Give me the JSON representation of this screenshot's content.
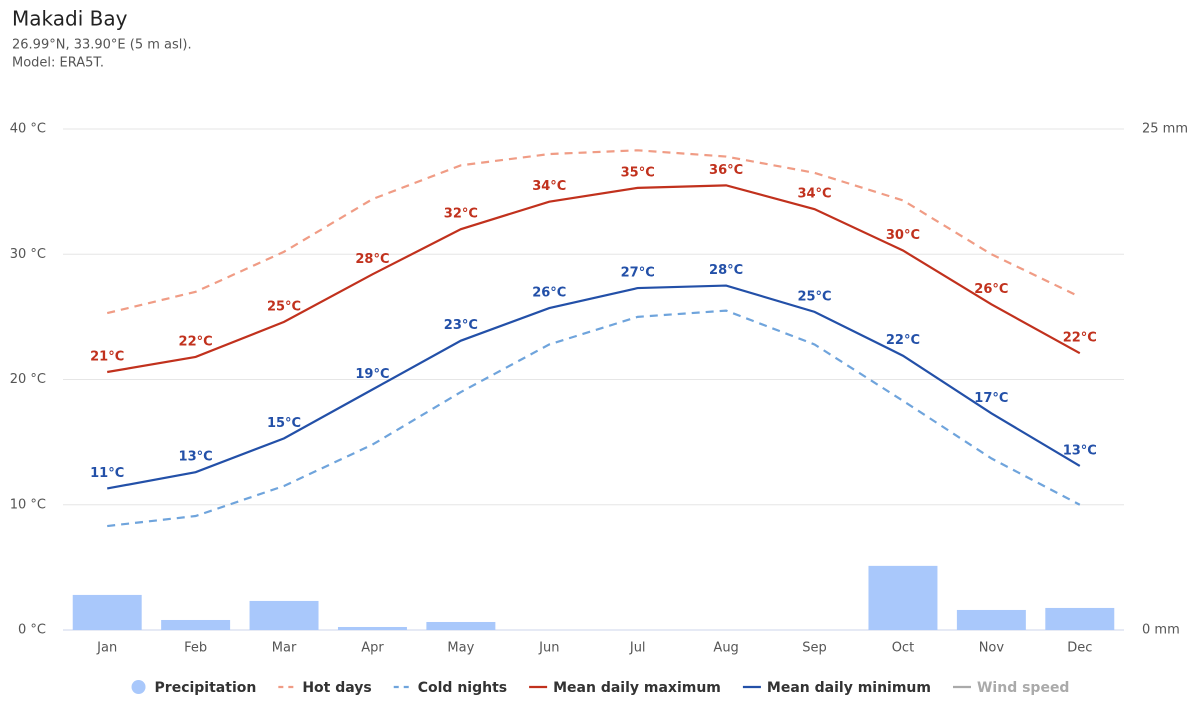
{
  "chart_data": {
    "type": "line",
    "title": "Makadi Bay",
    "subtitle": [
      "26.99°N, 33.90°E (5 m asl).",
      "Model: ERA5T."
    ],
    "categories": [
      "Jan",
      "Feb",
      "Mar",
      "Apr",
      "May",
      "Jun",
      "Jul",
      "Aug",
      "Sep",
      "Oct",
      "Nov",
      "Dec"
    ],
    "ylim": [
      0,
      40
    ],
    "yticks": [
      {
        "value": 0,
        "label": "0 °C"
      },
      {
        "value": 10,
        "label": "10 °C"
      },
      {
        "value": 20,
        "label": "20 °C"
      },
      {
        "value": 30,
        "label": "30 °C"
      },
      {
        "value": 40,
        "label": "40 °C"
      }
    ],
    "y2lim": [
      0,
      25
    ],
    "y2ticks": [
      {
        "value": 0,
        "label": "0 mm"
      },
      {
        "value": 25,
        "label": "25 mm"
      }
    ],
    "grid": true,
    "legend": "bottom",
    "series": [
      {
        "name": "Precipitation",
        "type": "column",
        "axis": "y2",
        "color": "#a9c8fb",
        "values": [
          1.75,
          0.5,
          1.45,
          0.15,
          0.4,
          0,
          0,
          0,
          0,
          3.2,
          1.0,
          1.1
        ]
      },
      {
        "name": "Hot days",
        "type": "line",
        "dash": true,
        "color": "#f09c85",
        "values": [
          25.3,
          27.0,
          30.2,
          34.4,
          37.1,
          38.0,
          38.3,
          37.8,
          36.5,
          34.3,
          30.0,
          26.6
        ]
      },
      {
        "name": "Cold nights",
        "type": "line",
        "dash": true,
        "color": "#6fa4dc",
        "values": [
          8.3,
          9.1,
          11.5,
          14.8,
          19.0,
          22.8,
          25.0,
          25.5,
          22.8,
          18.3,
          13.7,
          10.0
        ]
      },
      {
        "name": "Mean daily maximum",
        "type": "line",
        "color": "#c1311d",
        "values": [
          20.6,
          21.8,
          24.6,
          28.4,
          32.0,
          34.2,
          35.3,
          35.5,
          33.6,
          30.3,
          26.0,
          22.1
        ],
        "value_labels": [
          "21°C",
          "22°C",
          "25°C",
          "28°C",
          "32°C",
          "34°C",
          "35°C",
          "36°C",
          "34°C",
          "30°C",
          "26°C",
          "22°C"
        ]
      },
      {
        "name": "Mean daily minimum",
        "type": "line",
        "color": "#2350a8",
        "values": [
          11.3,
          12.6,
          15.3,
          19.2,
          23.1,
          25.7,
          27.3,
          27.5,
          25.4,
          21.9,
          17.3,
          13.1
        ],
        "value_labels": [
          "11°C",
          "13°C",
          "15°C",
          "19°C",
          "23°C",
          "26°C",
          "27°C",
          "28°C",
          "25°C",
          "22°C",
          "17°C",
          "13°C"
        ]
      },
      {
        "name": "Wind speed",
        "type": "line",
        "visible": false,
        "color": "#aaaaaa",
        "values": [
          null,
          null,
          null,
          null,
          null,
          null,
          null,
          null,
          null,
          null,
          null,
          null
        ]
      }
    ]
  }
}
